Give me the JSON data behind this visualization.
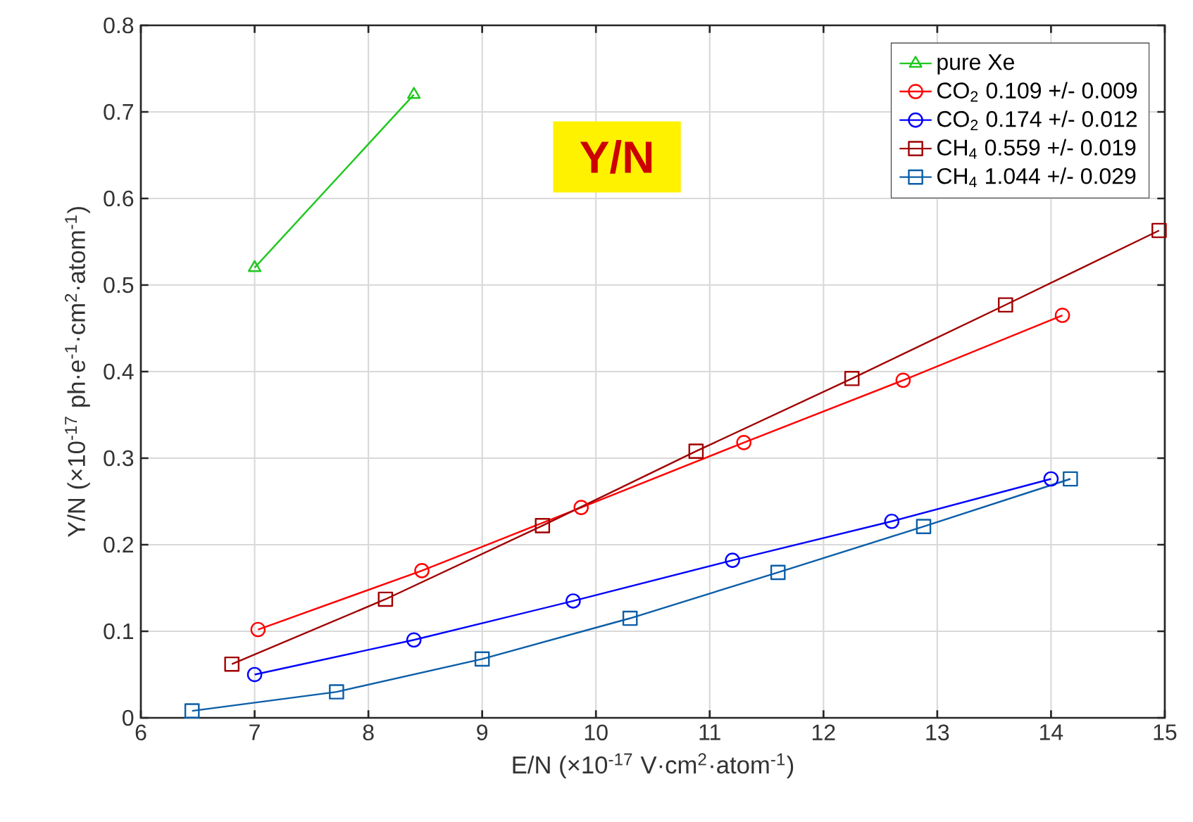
{
  "chart_data": {
    "type": "line",
    "xlabel": "E/N (×10$^{-17}$ V·cm$^{2}$·atom$^{-1}$)",
    "ylabel": "Y/N (×10$^{-17}$ ph·e$^{-1}$·cm$^{2}$·atom$^{-1}$)",
    "annotations": [
      "Y/N"
    ],
    "series": [
      {
        "name": "pure Xe",
        "color": "#1ec81e",
        "marker": "triangle",
        "x": [
          7.0,
          8.4
        ],
        "values": [
          0.52,
          0.72
        ]
      },
      {
        "name": "CO$_{2}$ 0.109 +/- 0.009",
        "color": "#ff0000",
        "marker": "circle",
        "x": [
          7.03,
          8.47,
          9.87,
          11.3,
          12.7,
          14.1
        ],
        "values": [
          0.102,
          0.17,
          0.243,
          0.318,
          0.39,
          0.465
        ]
      },
      {
        "name": "CO$_{2}$ 0.174 +/- 0.012",
        "color": "#0000ff",
        "marker": "circle",
        "x": [
          7.0,
          8.4,
          9.8,
          11.2,
          12.6,
          14.0
        ],
        "values": [
          0.05,
          0.09,
          0.135,
          0.182,
          0.227,
          0.276
        ]
      },
      {
        "name": "CH$_{4}$ 0.559 +/- 0.019",
        "color": "#a00000",
        "marker": "square",
        "x": [
          6.8,
          8.15,
          9.53,
          10.88,
          12.25,
          13.6,
          14.95
        ],
        "values": [
          0.062,
          0.137,
          0.222,
          0.308,
          0.392,
          0.477,
          0.563
        ]
      },
      {
        "name": "CH$_{4}$ 1.044 +/- 0.029",
        "color": "#0b5ea8",
        "marker": "square",
        "x": [
          6.45,
          7.72,
          9.0,
          10.3,
          11.6,
          12.88,
          14.17
        ],
        "values": [
          0.008,
          0.03,
          0.068,
          0.115,
          0.168,
          0.221,
          0.276
        ]
      }
    ],
    "xlim": [
      6,
      15
    ],
    "ylim": [
      0,
      0.8
    ],
    "xticks": [
      6,
      7,
      8,
      9,
      10,
      11,
      12,
      13,
      14,
      15
    ],
    "yticks": [
      0,
      0.1,
      0.2,
      0.3,
      0.4,
      0.5,
      0.6,
      0.7,
      0.8
    ],
    "grid": true,
    "legend": "top right",
    "line_style": "solid"
  }
}
